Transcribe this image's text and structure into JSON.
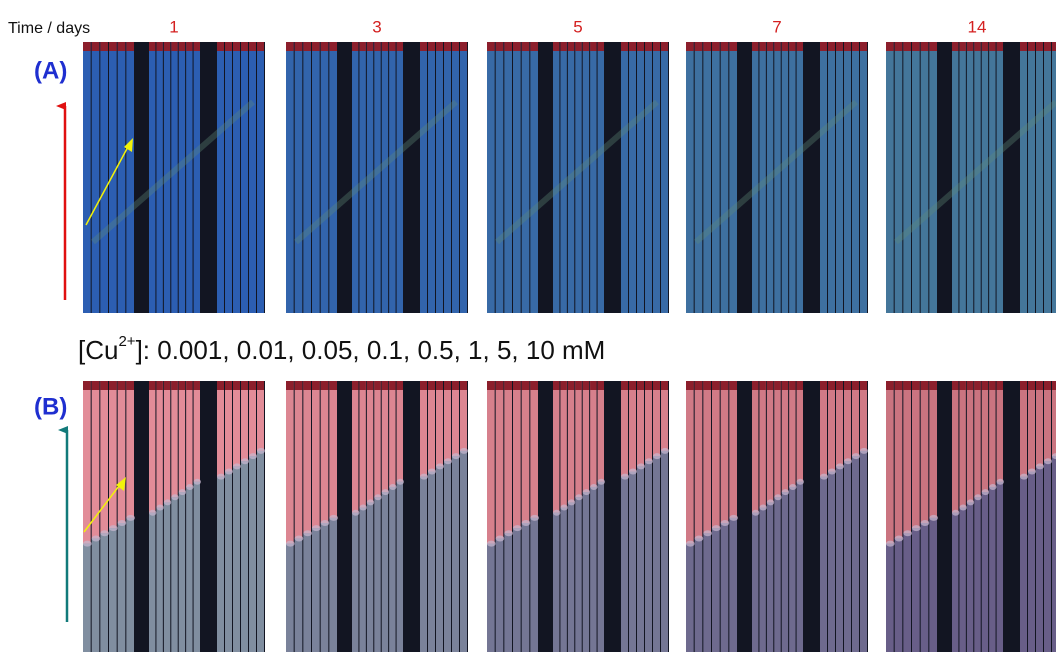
{
  "header": {
    "axis_label": "Time / days",
    "days": [
      "1",
      "3",
      "5",
      "7",
      "14"
    ]
  },
  "panels": [
    {
      "label": "(A)"
    },
    {
      "label": "(B)"
    }
  ],
  "concentration": {
    "prefix": "[Cu",
    "superscript": "2+",
    "suffix": "]: 0.001, 0.01, 0.05, 0.1, 0.5, 1, 5, 10 mM"
  }
}
